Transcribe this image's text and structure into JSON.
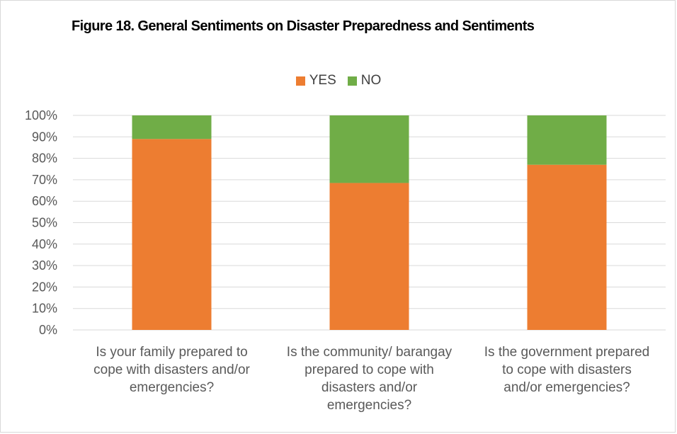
{
  "chart_data": {
    "type": "bar",
    "stacked": true,
    "title": "Figure 18. General Sentiments on Disaster Preparedness and Sentiments",
    "categories": [
      [
        "Is your family prepared to",
        "cope with disasters and/or",
        "emergencies?"
      ],
      [
        "Is the community/ barangay",
        "prepared to cope with",
        "disasters and/or",
        "emergencies?"
      ],
      [
        "Is the government prepared",
        "to cope with disasters",
        "and/or emergencies?"
      ]
    ],
    "series": [
      {
        "name": "YES",
        "color": "#ed7d31",
        "values": [
          89,
          68.5,
          77
        ]
      },
      {
        "name": "NO",
        "color": "#70ad47",
        "values": [
          11,
          31.5,
          23
        ]
      }
    ],
    "yticks": [
      "0%",
      "10%",
      "20%",
      "30%",
      "40%",
      "50%",
      "60%",
      "70%",
      "80%",
      "90%",
      "100%"
    ],
    "ylim": [
      0,
      100
    ],
    "grid": true,
    "legend_position": "top"
  }
}
